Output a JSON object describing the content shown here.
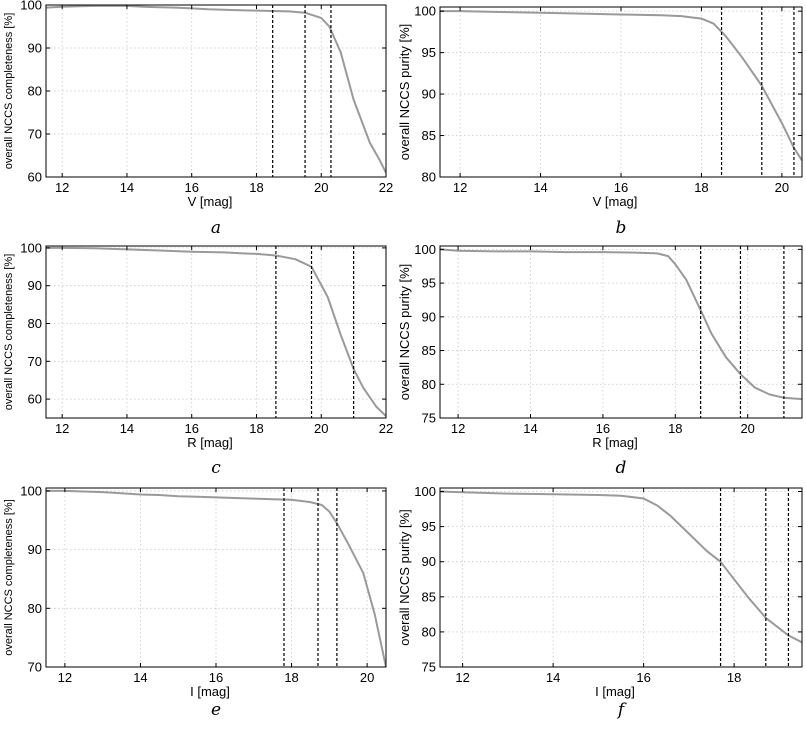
{
  "chart_data": [
    {
      "type": "line",
      "panel_label": "a",
      "xlabel": "V [mag]",
      "ylabel": "overall NCCS completeness [%]",
      "xlim": [
        11.5,
        22
      ],
      "ylim": [
        60,
        100
      ],
      "xticks": [
        12,
        14,
        16,
        18,
        20,
        22
      ],
      "yticks": [
        60,
        70,
        80,
        90,
        100
      ],
      "grid": true,
      "vlines": [
        18.5,
        19.5,
        20.3
      ],
      "series": [
        {
          "color": "#9a9a9a",
          "x": [
            11.5,
            12,
            12.5,
            13,
            13.5,
            14,
            14.5,
            15,
            15.5,
            16,
            16.5,
            17,
            17.5,
            18,
            18.5,
            19,
            19.5,
            20,
            20.25,
            20.6,
            21,
            21.5,
            21.8,
            22
          ],
          "y": [
            99.4,
            99.6,
            99.7,
            99.8,
            99.8,
            99.8,
            99.6,
            99.5,
            99.4,
            99.2,
            99.0,
            98.9,
            98.8,
            98.7,
            98.6,
            98.5,
            98.2,
            97.0,
            95.0,
            89.0,
            78.0,
            68.0,
            64.0,
            61.0
          ]
        }
      ]
    },
    {
      "type": "line",
      "panel_label": "b",
      "xlabel": "V [mag]",
      "ylabel": "overall NCCS purity [%]",
      "xlim": [
        11.5,
        20.5
      ],
      "ylim": [
        80,
        100.5
      ],
      "xticks": [
        12,
        14,
        16,
        18,
        20
      ],
      "yticks": [
        80,
        85,
        90,
        95,
        100
      ],
      "grid": true,
      "vlines": [
        18.5,
        19.5,
        20.3
      ],
      "series": [
        {
          "color": "#9a9a9a",
          "x": [
            11.5,
            12,
            13,
            14,
            15,
            16,
            17,
            17.5,
            18,
            18.3,
            18.6,
            19,
            19.5,
            20,
            20.3,
            20.5
          ],
          "y": [
            100.0,
            100.0,
            99.9,
            99.8,
            99.7,
            99.6,
            99.5,
            99.4,
            99.1,
            98.5,
            97.0,
            94.5,
            91.0,
            86.5,
            83.5,
            82.0
          ]
        }
      ]
    },
    {
      "type": "line",
      "panel_label": "c",
      "xlabel": "R [mag]",
      "ylabel": "overall NCCS completeness [%]",
      "xlim": [
        11.5,
        22
      ],
      "ylim": [
        55,
        100.5
      ],
      "xticks": [
        12,
        14,
        16,
        18,
        20,
        22
      ],
      "yticks": [
        60,
        70,
        80,
        90,
        100
      ],
      "grid": true,
      "vlines": [
        18.6,
        19.7,
        21.0
      ],
      "series": [
        {
          "color": "#9a9a9a",
          "x": [
            11.5,
            12,
            13,
            14,
            15,
            16,
            17,
            17.5,
            18,
            18.6,
            19.2,
            19.7,
            20.2,
            20.6,
            21.0,
            21.3,
            21.7,
            22
          ],
          "y": [
            100.0,
            100.0,
            99.9,
            99.6,
            99.3,
            99.0,
            98.8,
            98.6,
            98.4,
            98.0,
            97.0,
            95.0,
            87.0,
            77.0,
            68.0,
            63.0,
            58.0,
            55.5
          ]
        }
      ]
    },
    {
      "type": "line",
      "panel_label": "d",
      "xlabel": "R [mag]",
      "ylabel": "overall NCCS purity [%]",
      "xlim": [
        11.5,
        21.5
      ],
      "ylim": [
        75,
        100.5
      ],
      "xticks": [
        12,
        14,
        16,
        18,
        20
      ],
      "yticks": [
        75,
        80,
        85,
        90,
        95,
        100
      ],
      "grid": true,
      "vlines": [
        18.7,
        19.8,
        21.0
      ],
      "series": [
        {
          "color": "#9a9a9a",
          "x": [
            11.5,
            12,
            13,
            14,
            15,
            16,
            17,
            17.5,
            17.8,
            18.0,
            18.3,
            18.7,
            19.0,
            19.4,
            19.8,
            20.2,
            20.6,
            21.0,
            21.5
          ],
          "y": [
            100.0,
            99.8,
            99.7,
            99.7,
            99.6,
            99.6,
            99.5,
            99.4,
            99.0,
            97.8,
            95.5,
            91.0,
            87.5,
            84.0,
            81.5,
            79.5,
            78.5,
            78.0,
            77.8
          ]
        }
      ]
    },
    {
      "type": "line",
      "panel_label": "e",
      "xlabel": "I [mag]",
      "ylabel": "overall NCCS completeness [%]",
      "xlim": [
        11.5,
        20.5
      ],
      "ylim": [
        70,
        100.5
      ],
      "xticks": [
        12,
        14,
        16,
        18,
        20
      ],
      "yticks": [
        70,
        80,
        90,
        100
      ],
      "grid": true,
      "vlines": [
        17.8,
        18.7,
        19.2
      ],
      "series": [
        {
          "color": "#9a9a9a",
          "x": [
            11.5,
            12,
            12.5,
            13,
            13.5,
            14,
            14.5,
            15,
            15.5,
            16,
            16.5,
            17,
            17.5,
            18,
            18.5,
            18.8,
            19.0,
            19.2,
            19.5,
            19.9,
            20.2,
            20.5
          ],
          "y": [
            100.0,
            100.0,
            99.9,
            99.8,
            99.6,
            99.4,
            99.3,
            99.1,
            99.0,
            98.9,
            98.8,
            98.7,
            98.6,
            98.5,
            98.1,
            97.6,
            96.5,
            94.5,
            91.0,
            86.0,
            79.0,
            70.0
          ]
        }
      ]
    },
    {
      "type": "line",
      "panel_label": "f",
      "xlabel": "I [mag]",
      "ylabel": "overall NCCS purity [%]",
      "xlim": [
        11.5,
        19.5
      ],
      "ylim": [
        75,
        100.5
      ],
      "xticks": [
        12,
        14,
        16,
        18
      ],
      "yticks": [
        75,
        80,
        85,
        90,
        95,
        100
      ],
      "grid": true,
      "vlines": [
        17.7,
        18.7,
        19.2
      ],
      "series": [
        {
          "color": "#9a9a9a",
          "x": [
            11.5,
            12,
            13,
            14,
            15,
            15.5,
            16,
            16.3,
            16.6,
            17.0,
            17.4,
            17.7,
            18.0,
            18.3,
            18.7,
            19.0,
            19.2,
            19.5
          ],
          "y": [
            100.0,
            99.9,
            99.7,
            99.6,
            99.5,
            99.4,
            99.0,
            98.0,
            96.5,
            94.0,
            91.5,
            90.0,
            87.5,
            85.0,
            82.0,
            80.5,
            79.5,
            78.5
          ]
        }
      ]
    }
  ]
}
